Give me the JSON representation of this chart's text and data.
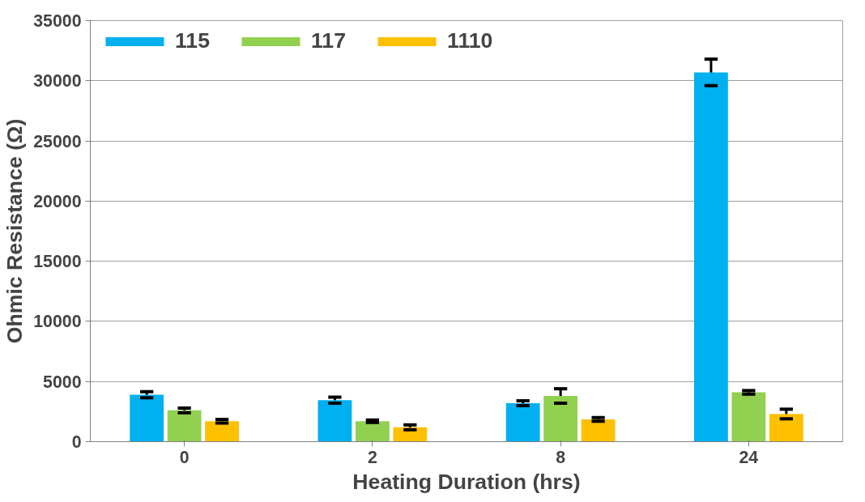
{
  "chart_data": {
    "type": "bar",
    "xlabel": "Heating Duration (hrs)",
    "ylabel": "Ohmic Resistance (Ω)",
    "categories": [
      "0",
      "2",
      "8",
      "24"
    ],
    "series": [
      {
        "name": "115",
        "color": "#00b0f0",
        "values": [
          3900,
          3450,
          3200,
          30700
        ],
        "errors": [
          250,
          250,
          200,
          1100
        ]
      },
      {
        "name": "117",
        "color": "#92d050",
        "values": [
          2600,
          1700,
          3800,
          4100
        ],
        "errors": [
          200,
          100,
          600,
          150
        ]
      },
      {
        "name": "1110",
        "color": "#ffc000",
        "values": [
          1700,
          1200,
          1850,
          2300
        ],
        "errors": [
          150,
          200,
          150,
          400
        ]
      }
    ],
    "ylim": [
      0,
      35000
    ],
    "yticks": [
      0,
      5000,
      10000,
      15000,
      20000,
      25000,
      30000,
      35000
    ],
    "grid": "y",
    "legend": "top left"
  }
}
